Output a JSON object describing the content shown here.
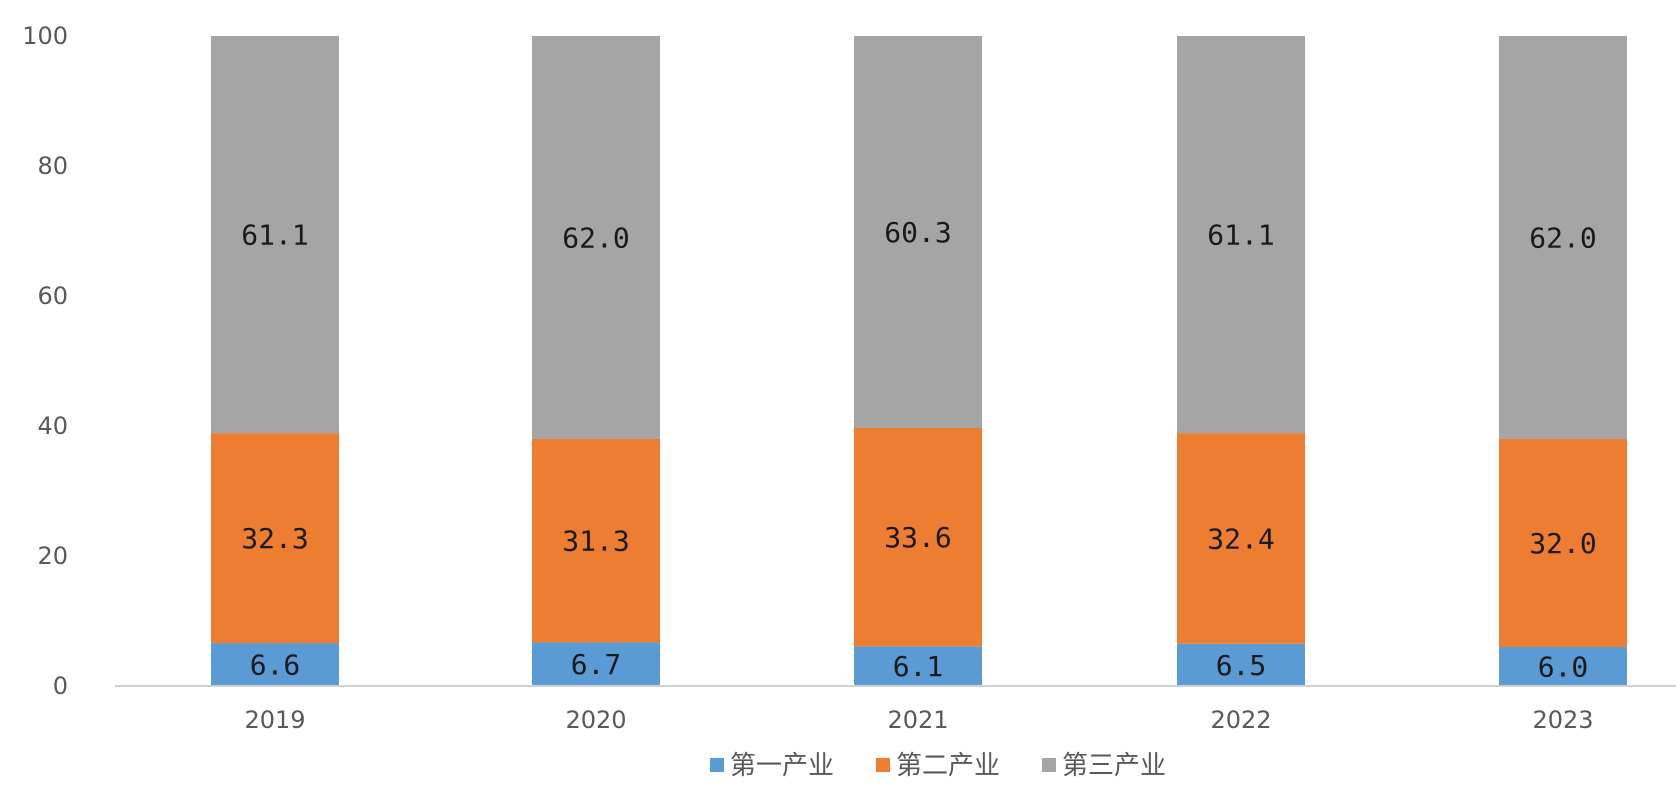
{
  "chart_data": {
    "type": "bar",
    "stacked": true,
    "categories": [
      "2019",
      "2020",
      "2021",
      "2022",
      "2023"
    ],
    "series": [
      {
        "name": "第一产业",
        "color": "#5b9bd5",
        "values": [
          6.6,
          6.7,
          6.1,
          6.5,
          6.0
        ],
        "labels": [
          "6.6",
          "6.7",
          "6.1",
          "6.5",
          "6.0"
        ]
      },
      {
        "name": "第二产业",
        "color": "#ed7d31",
        "values": [
          32.3,
          31.3,
          33.6,
          32.4,
          32.0
        ],
        "labels": [
          "32.3",
          "31.3",
          "33.6",
          "32.4",
          "32.0"
        ]
      },
      {
        "name": "第三产业",
        "color": "#a5a5a5",
        "values": [
          61.1,
          62.0,
          60.3,
          61.1,
          62.0
        ],
        "labels": [
          "61.1",
          "62.0",
          "60.3",
          "61.1",
          "62.0"
        ]
      }
    ],
    "yticks": [
      "0",
      "20",
      "40",
      "60",
      "80",
      "100"
    ],
    "ylim": [
      0,
      100
    ],
    "grid": false,
    "legend": "bottom-center",
    "title": "",
    "xlabel": "",
    "ylabel": ""
  }
}
